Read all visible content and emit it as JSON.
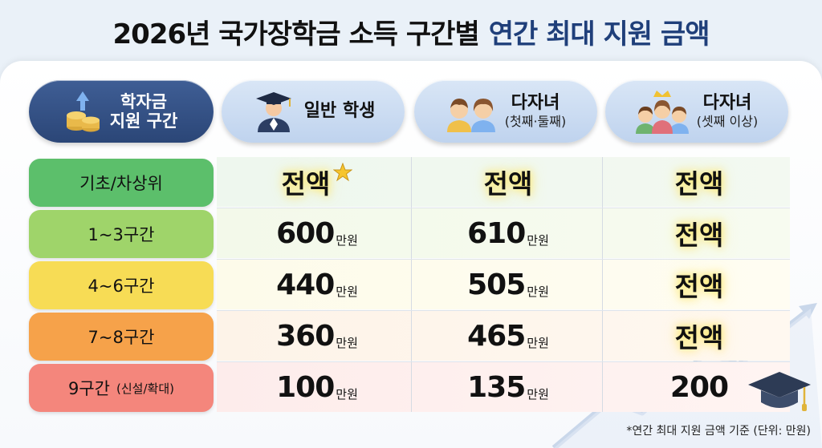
{
  "title": {
    "part1": "2026년 국가장학금 소득 구간별",
    "part2": "연간 최대 지원 금액"
  },
  "headers": {
    "bracket": {
      "line1": "학자금",
      "line2": "지원 구간"
    },
    "general": {
      "main": "일반 학생"
    },
    "multi12": {
      "main": "다자녀",
      "sub": "(첫째·둘째)"
    },
    "multi3": {
      "main": "다자녀",
      "sub": "(셋째 이상)"
    }
  },
  "unit": "만원",
  "rows": [
    {
      "label": "기초/차상위",
      "label_note": "",
      "general": "전액",
      "multi12": "전액",
      "multi3": "전액",
      "color": "#5cbf6b"
    },
    {
      "label": "1~3구간",
      "label_note": "",
      "general": "600",
      "multi12": "610",
      "multi3": "전액",
      "color": "#9fd46a"
    },
    {
      "label": "4~6구간",
      "label_note": "",
      "general": "440",
      "multi12": "505",
      "multi3": "전액",
      "color": "#f7dc55"
    },
    {
      "label": "7~8구간",
      "label_note": "",
      "general": "360",
      "multi12": "465",
      "multi3": "전액",
      "color": "#f6a24a"
    },
    {
      "label": "9구간",
      "label_note": "(신설/확대)",
      "general": "100",
      "multi12": "135",
      "multi3": "200",
      "color": "#f4867c"
    }
  ],
  "footnote": "*연간 최대 지원 금액 기준 (단위: 만원)",
  "icons": [
    "coins-arrow-icon",
    "graduate-icon",
    "children-icon",
    "family-crown-icon",
    "star-icon",
    "graduation-cap-icon"
  ]
}
